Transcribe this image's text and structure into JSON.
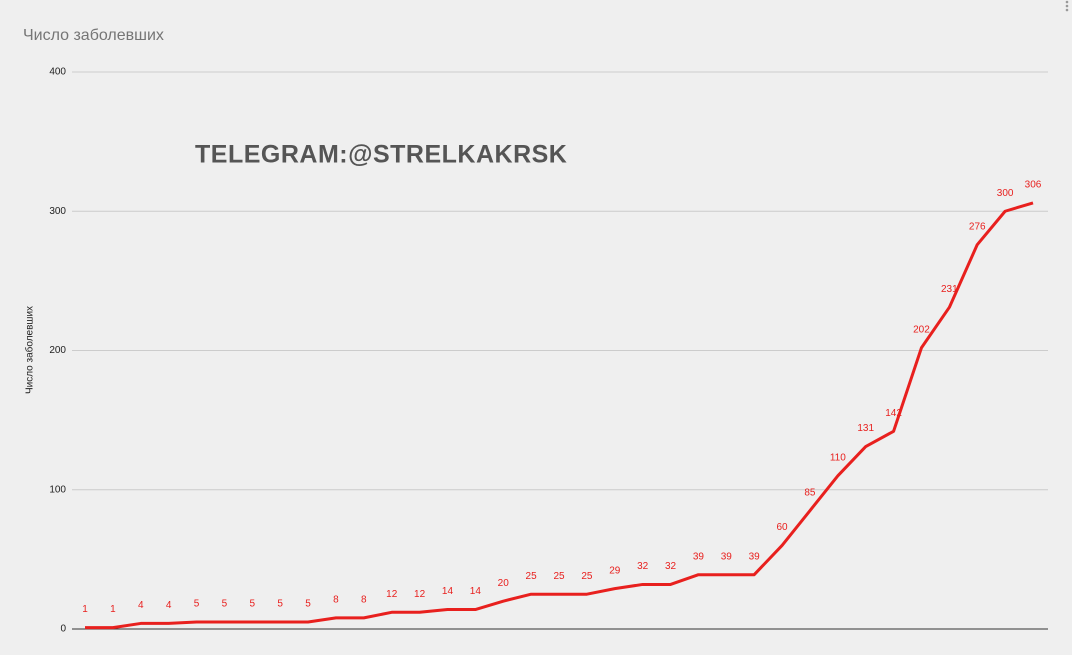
{
  "chart_data": {
    "type": "line",
    "title": "Число заболевших",
    "y_label": "Число заболевших",
    "annotation": "TELEGRAM:@STRELKAKRSK",
    "values": [
      1,
      1,
      4,
      4,
      5,
      5,
      5,
      5,
      5,
      8,
      8,
      12,
      12,
      14,
      14,
      20,
      25,
      25,
      25,
      29,
      32,
      32,
      39,
      39,
      39,
      60,
      85,
      110,
      131,
      142,
      202,
      231,
      276,
      300,
      306
    ],
    "color": "#e8201e",
    "ylim": [
      0,
      400
    ],
    "yticks": [
      0,
      100,
      200,
      300,
      400
    ],
    "grid": true
  }
}
